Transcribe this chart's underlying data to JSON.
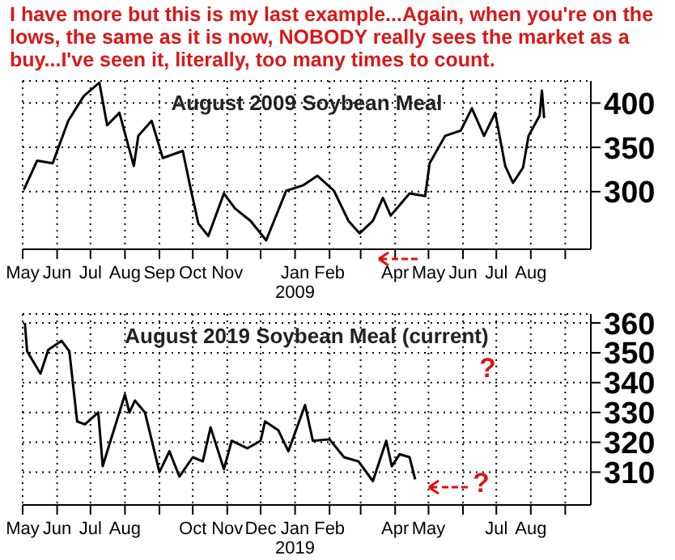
{
  "chart_data": [
    {
      "type": "line",
      "title": "August 2009 Soybean Meal",
      "annotations": [
        "I have more but this is my last example...Again, when you're on the lows, the same as it is now, NOBODY really sees the market as a buy...I've seen it, literally, too many times to count."
      ],
      "x": [
        "2008-05-02",
        "2008-05-14",
        "2008-05-28",
        "2008-06-11",
        "2008-06-25",
        "2008-07-09",
        "2008-07-16",
        "2008-07-27",
        "2008-08-09",
        "2008-08-13",
        "2008-08-25",
        "2008-09-04",
        "2008-09-22",
        "2008-09-29",
        "2008-10-06",
        "2008-10-15",
        "2008-10-29",
        "2008-11-08",
        "2008-11-22",
        "2008-12-06",
        "2008-12-24",
        "2009-01-08",
        "2009-01-21",
        "2009-02-05",
        "2009-02-18",
        "2009-02-28",
        "2009-03-12",
        "2009-03-21",
        "2009-03-28",
        "2009-04-14",
        "2009-04-28",
        "2009-05-02",
        "2009-05-16",
        "2009-05-30",
        "2009-06-09",
        "2009-06-20",
        "2009-06-30",
        "2009-07-09",
        "2009-07-16",
        "2009-07-25",
        "2009-07-30",
        "2009-08-09",
        "2009-08-11",
        "2009-08-13"
      ],
      "series": [
        {
          "color": "#000000",
          "values": [
            302,
            335,
            332,
            380,
            408,
            423,
            375,
            389,
            329,
            363,
            380,
            338,
            346,
            304,
            264,
            250,
            298,
            281,
            267,
            245,
            301,
            307,
            318,
            301,
            267,
            253,
            267,
            293,
            273,
            298,
            295,
            332,
            363,
            369,
            394,
            363,
            389,
            329,
            310,
            327,
            363,
            386,
            414,
            383
          ]
        }
      ],
      "xlim": [
        "2008-05-01",
        "2009-09-24"
      ],
      "xticks": [
        {
          "value": "2008-05-01",
          "label": "May"
        },
        {
          "value": "2008-06-01",
          "label": "Jun"
        },
        {
          "value": "2008-07-01",
          "label": "Jul"
        },
        {
          "value": "2008-08-01",
          "label": "Aug"
        },
        {
          "value": "2008-09-01",
          "label": "Sep"
        },
        {
          "value": "2008-10-01",
          "label": "Oct"
        },
        {
          "value": "2008-11-01",
          "label": "Nov"
        },
        {
          "value": "2008-12-01",
          "label": null
        },
        {
          "value": "2009-01-01",
          "label": "Jan\n2009"
        },
        {
          "value": "2009-02-01",
          "label": "Feb"
        },
        {
          "value": "2009-03-01",
          "label": null
        },
        {
          "value": "2009-04-01",
          "label": "Apr"
        },
        {
          "value": "2009-05-01",
          "label": "May"
        },
        {
          "value": "2009-06-01",
          "label": "Jun"
        },
        {
          "value": "2009-07-01",
          "label": "Jul"
        },
        {
          "value": "2009-08-01",
          "label": "Aug"
        },
        {
          "value": "2009-09-01",
          "label": null
        }
      ],
      "ylim": [
        235,
        425
      ],
      "yticks": [
        300,
        350,
        400
      ],
      "grid": true,
      "marker": "none",
      "line_style": "solid"
    },
    {
      "type": "line",
      "title": "August 2019 Soybean Meal (current)",
      "annotations": [
        "?",
        "?"
      ],
      "x": [
        "2018-05-03",
        "2018-05-05",
        "2018-05-17",
        "2018-05-24",
        "2018-06-05",
        "2018-06-12",
        "2018-06-19",
        "2018-06-26",
        "2018-07-08",
        "2018-07-12",
        "2018-07-19",
        "2018-08-01",
        "2018-08-05",
        "2018-08-10",
        "2018-08-19",
        "2018-09-01",
        "2018-09-10",
        "2018-09-19",
        "2018-10-01",
        "2018-10-10",
        "2018-10-17",
        "2018-10-29",
        "2018-11-05",
        "2018-11-19",
        "2018-12-01",
        "2018-12-05",
        "2018-12-17",
        "2018-12-26",
        "2019-01-10",
        "2019-01-17",
        "2019-02-01",
        "2019-02-14",
        "2019-02-27",
        "2019-03-12",
        "2019-03-24",
        "2019-03-29",
        "2019-04-05",
        "2019-04-14",
        "2019-04-19"
      ],
      "series": [
        {
          "color": "#000000",
          "values": [
            360,
            350.5,
            343,
            351,
            354,
            350.5,
            327,
            326,
            330,
            312,
            320.5,
            336,
            330,
            334,
            330,
            310,
            317,
            308.5,
            315,
            313.6,
            325,
            311,
            320.5,
            318,
            320.5,
            327,
            324,
            317,
            332.5,
            320.5,
            321,
            315,
            313.6,
            307,
            320.5,
            312,
            316,
            315,
            307.6
          ]
        }
      ],
      "xlim": [
        "2018-05-01",
        "2019-09-24"
      ],
      "xticks": [
        {
          "value": "2018-05-01",
          "label": "May"
        },
        {
          "value": "2018-06-01",
          "label": "Jun"
        },
        {
          "value": "2018-07-01",
          "label": "Jul"
        },
        {
          "value": "2018-08-01",
          "label": "Aug"
        },
        {
          "value": "2018-09-01",
          "label": null
        },
        {
          "value": "2018-10-01",
          "label": "Oct"
        },
        {
          "value": "2018-11-01",
          "label": "Nov"
        },
        {
          "value": "2018-12-01",
          "label": "Dec"
        },
        {
          "value": "2019-01-01",
          "label": "Jan\n2019"
        },
        {
          "value": "2019-02-01",
          "label": "Feb"
        },
        {
          "value": "2019-03-01",
          "label": null
        },
        {
          "value": "2019-04-01",
          "label": "Apr"
        },
        {
          "value": "2019-05-01",
          "label": "May"
        },
        {
          "value": "2019-06-01",
          "label": null
        },
        {
          "value": "2019-07-01",
          "label": "Jul"
        },
        {
          "value": "2019-08-01",
          "label": "Aug"
        },
        {
          "value": "2019-09-01",
          "label": null
        }
      ],
      "ylim": [
        299,
        363
      ],
      "yticks": [
        310,
        320,
        330,
        340,
        350,
        360
      ],
      "grid": true,
      "marker": "none",
      "line_style": "solid"
    }
  ]
}
